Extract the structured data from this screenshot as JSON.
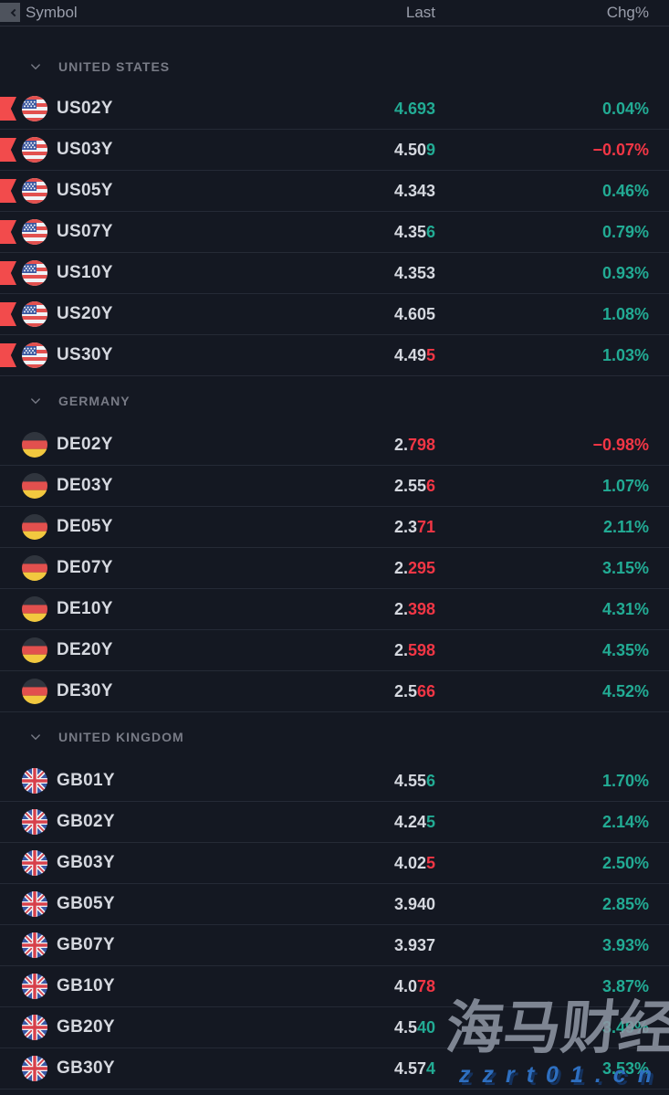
{
  "header": {
    "symbol": "Symbol",
    "last": "Last",
    "chg": "Chg%"
  },
  "colors": {
    "background": "#141822",
    "up": "#22ab94",
    "down": "#f23645",
    "neutral_text": "#d5d8df",
    "group_label": "#787b86",
    "flag_marker": "#f24b4c"
  },
  "icons": {
    "corner": "chevron-left-icon",
    "group_toggle": "chevron-down-icon",
    "us": "us-flag-icon",
    "de": "de-flag-icon",
    "gb": "gb-flag-icon",
    "marked_row": "flag-marker-icon"
  },
  "groups": [
    {
      "label": "UNITED STATES",
      "rows": [
        {
          "symbol": "US02Y",
          "flag": "us",
          "marked": true,
          "last_base": "",
          "last_hl": "4.693",
          "hl_dir": "up",
          "chg": "0.04%",
          "chg_dir": "up"
        },
        {
          "symbol": "US03Y",
          "flag": "us",
          "marked": true,
          "last_base": "4.50",
          "last_hl": "9",
          "hl_dir": "up",
          "chg": "−0.07%",
          "chg_dir": "down"
        },
        {
          "symbol": "US05Y",
          "flag": "us",
          "marked": true,
          "last_base": "4.343",
          "last_hl": "",
          "hl_dir": "none",
          "chg": "0.46%",
          "chg_dir": "up"
        },
        {
          "symbol": "US07Y",
          "flag": "us",
          "marked": true,
          "last_base": "4.35",
          "last_hl": "6",
          "hl_dir": "up",
          "chg": "0.79%",
          "chg_dir": "up"
        },
        {
          "symbol": "US10Y",
          "flag": "us",
          "marked": true,
          "last_base": "4.353",
          "last_hl": "",
          "hl_dir": "none",
          "chg": "0.93%",
          "chg_dir": "up"
        },
        {
          "symbol": "US20Y",
          "flag": "us",
          "marked": true,
          "last_base": "4.605",
          "last_hl": "",
          "hl_dir": "none",
          "chg": "1.08%",
          "chg_dir": "up"
        },
        {
          "symbol": "US30Y",
          "flag": "us",
          "marked": true,
          "last_base": "4.49",
          "last_hl": "5",
          "hl_dir": "down",
          "chg": "1.03%",
          "chg_dir": "up"
        }
      ]
    },
    {
      "label": "GERMANY",
      "rows": [
        {
          "symbol": "DE02Y",
          "flag": "de",
          "marked": false,
          "last_base": "2.",
          "last_hl": "798",
          "hl_dir": "down",
          "chg": "−0.98%",
          "chg_dir": "down"
        },
        {
          "symbol": "DE03Y",
          "flag": "de",
          "marked": false,
          "last_base": "2.55",
          "last_hl": "6",
          "hl_dir": "down",
          "chg": "1.07%",
          "chg_dir": "up"
        },
        {
          "symbol": "DE05Y",
          "flag": "de",
          "marked": false,
          "last_base": "2.3",
          "last_hl": "71",
          "hl_dir": "down",
          "chg": "2.11%",
          "chg_dir": "up"
        },
        {
          "symbol": "DE07Y",
          "flag": "de",
          "marked": false,
          "last_base": "2.",
          "last_hl": "295",
          "hl_dir": "down",
          "chg": "3.15%",
          "chg_dir": "up"
        },
        {
          "symbol": "DE10Y",
          "flag": "de",
          "marked": false,
          "last_base": "2.",
          "last_hl": "398",
          "hl_dir": "down",
          "chg": "4.31%",
          "chg_dir": "up"
        },
        {
          "symbol": "DE20Y",
          "flag": "de",
          "marked": false,
          "last_base": "2.",
          "last_hl": "598",
          "hl_dir": "down",
          "chg": "4.35%",
          "chg_dir": "up"
        },
        {
          "symbol": "DE30Y",
          "flag": "de",
          "marked": false,
          "last_base": "2.5",
          "last_hl": "66",
          "hl_dir": "down",
          "chg": "4.52%",
          "chg_dir": "up"
        }
      ]
    },
    {
      "label": "UNITED KINGDOM",
      "rows": [
        {
          "symbol": "GB01Y",
          "flag": "gb",
          "marked": false,
          "last_base": "4.55",
          "last_hl": "6",
          "hl_dir": "up",
          "chg": "1.70%",
          "chg_dir": "up"
        },
        {
          "symbol": "GB02Y",
          "flag": "gb",
          "marked": false,
          "last_base": "4.24",
          "last_hl": "5",
          "hl_dir": "up",
          "chg": "2.14%",
          "chg_dir": "up"
        },
        {
          "symbol": "GB03Y",
          "flag": "gb",
          "marked": false,
          "last_base": "4.02",
          "last_hl": "5",
          "hl_dir": "down",
          "chg": "2.50%",
          "chg_dir": "up"
        },
        {
          "symbol": "GB05Y",
          "flag": "gb",
          "marked": false,
          "last_base": "3.940",
          "last_hl": "",
          "hl_dir": "none",
          "chg": "2.85%",
          "chg_dir": "up"
        },
        {
          "symbol": "GB07Y",
          "flag": "gb",
          "marked": false,
          "last_base": "3.937",
          "last_hl": "",
          "hl_dir": "none",
          "chg": "3.93%",
          "chg_dir": "up"
        },
        {
          "symbol": "GB10Y",
          "flag": "gb",
          "marked": false,
          "last_base": "4.0",
          "last_hl": "78",
          "hl_dir": "down",
          "chg": "3.87%",
          "chg_dir": "up"
        },
        {
          "symbol": "GB20Y",
          "flag": "gb",
          "marked": false,
          "last_base": "4.5",
          "last_hl": "40",
          "hl_dir": "up",
          "chg": "3.49%",
          "chg_dir": "up"
        },
        {
          "symbol": "GB30Y",
          "flag": "gb",
          "marked": false,
          "last_base": "4.57",
          "last_hl": "4",
          "hl_dir": "up",
          "chg": "3.53%",
          "chg_dir": "up"
        }
      ]
    }
  ],
  "watermark": {
    "brand": "海马财经",
    "url": "zzrt01.cn"
  }
}
